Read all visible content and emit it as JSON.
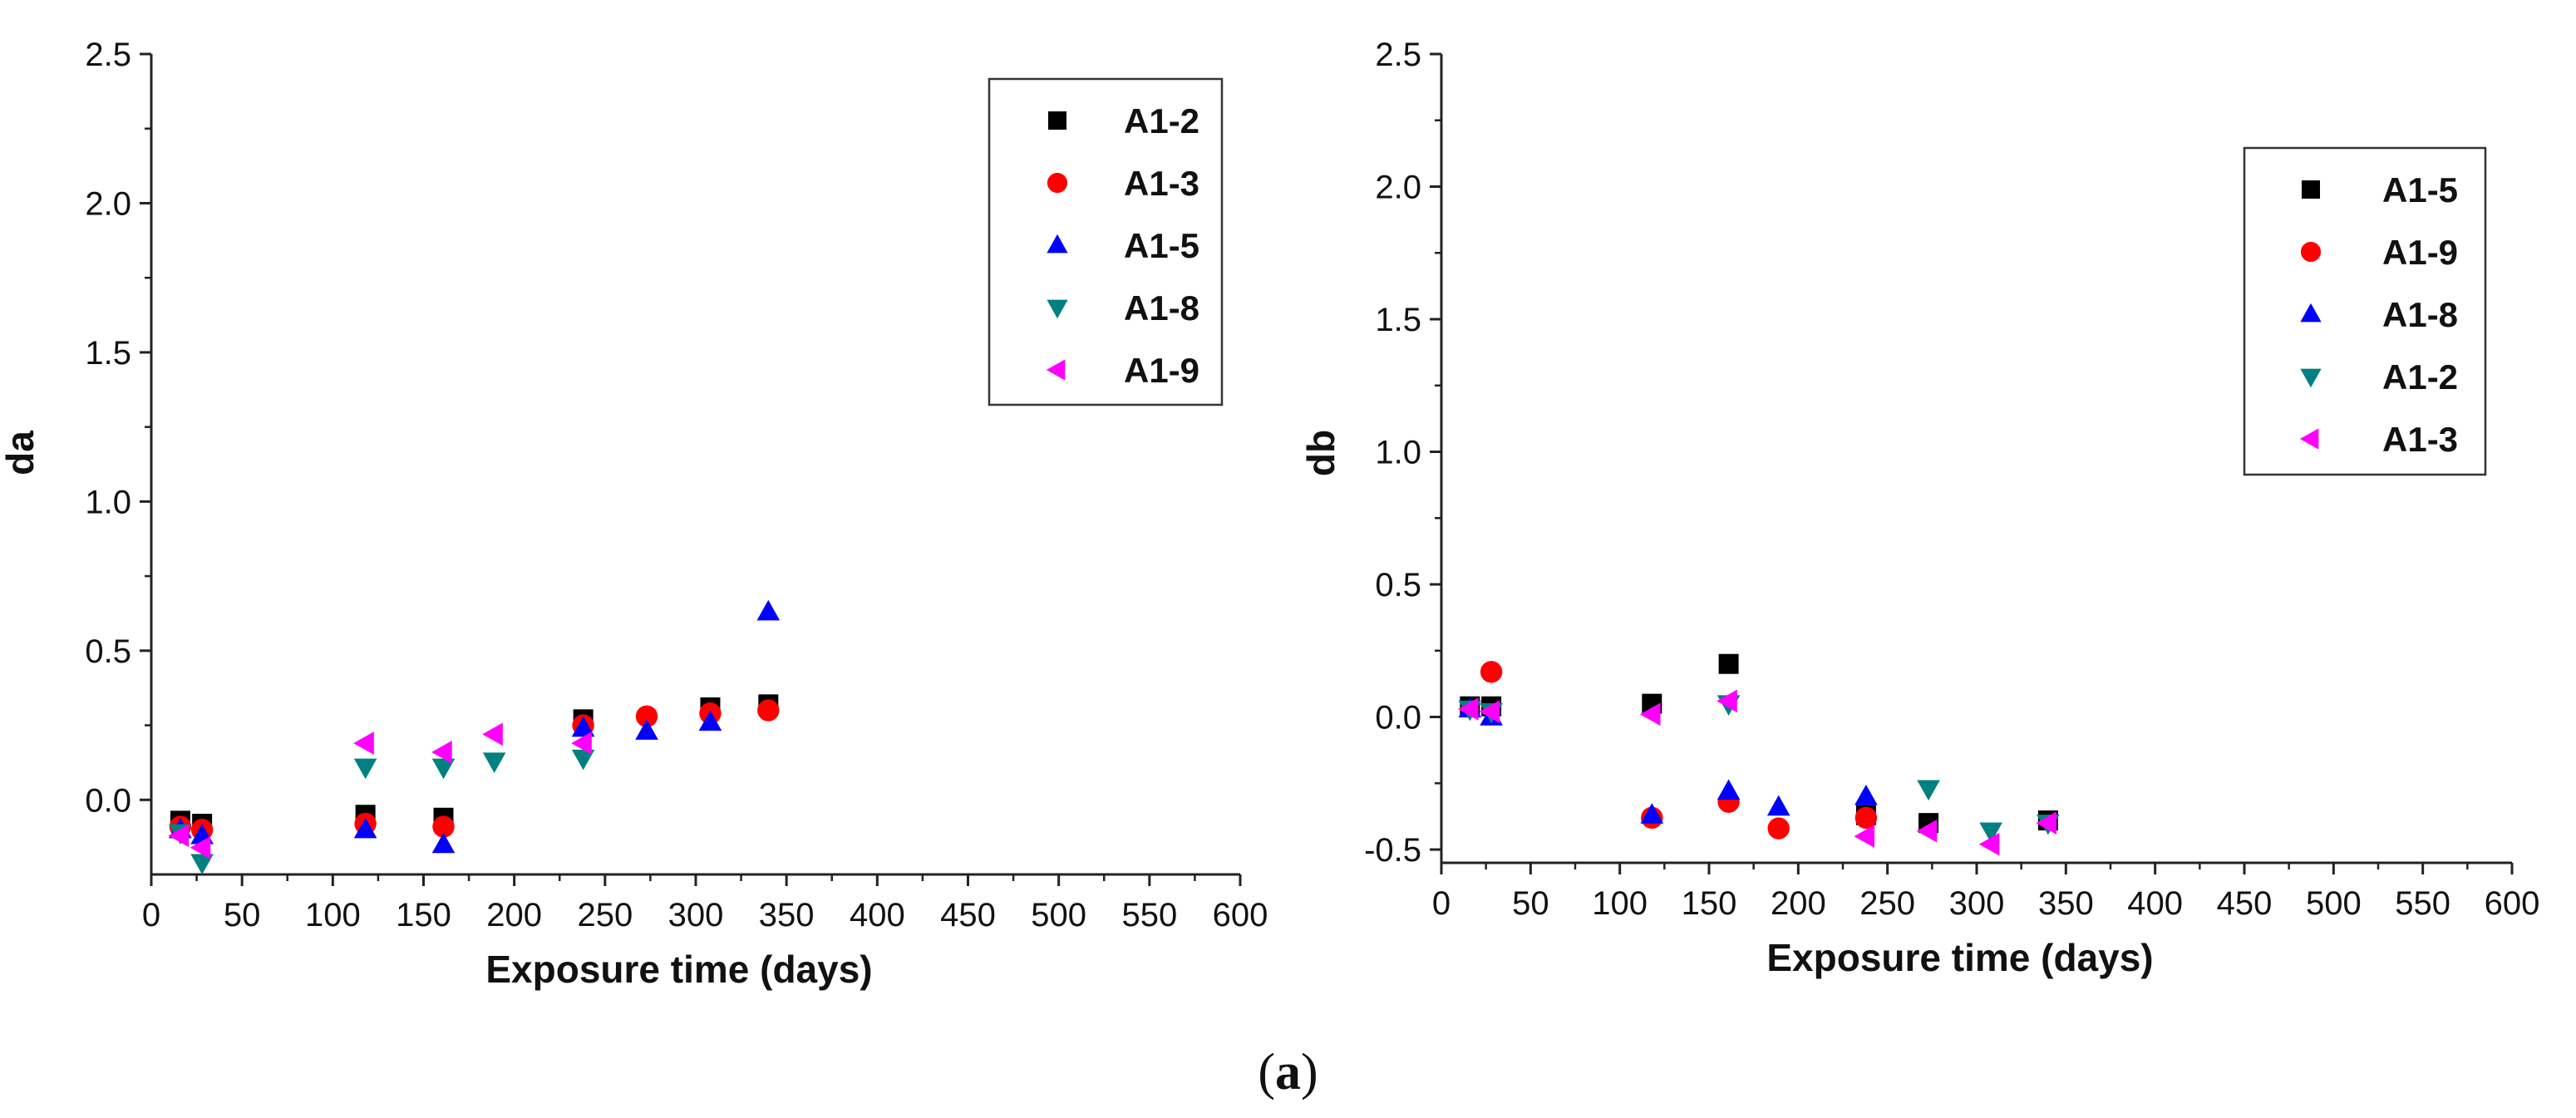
{
  "figure": {
    "label_open": "(",
    "label": "a",
    "label_close": ")"
  },
  "chart_data": [
    {
      "type": "scatter",
      "title": "",
      "xlabel": "Exposure time (days)",
      "ylabel": "da",
      "xlim": [
        0,
        600
      ],
      "ylim": [
        -0.25,
        2.5
      ],
      "xticks": [
        0,
        50,
        100,
        150,
        200,
        250,
        300,
        350,
        400,
        450,
        500,
        550,
        600
      ],
      "yticks": [
        0.0,
        0.5,
        1.0,
        1.5,
        2.0,
        2.5
      ],
      "yticklabels": [
        "0.0",
        "0.5",
        "1.0",
        "1.5",
        "2.0",
        "2.5"
      ],
      "legend_position": "top-right",
      "series": [
        {
          "name": "A1-2",
          "marker": "square",
          "color": "#000000",
          "points": [
            [
              16,
              -0.07
            ],
            [
              28,
              -0.08
            ],
            [
              118,
              -0.05
            ],
            [
              161,
              -0.06
            ],
            [
              238,
              0.27
            ],
            [
              308,
              0.31
            ],
            [
              340,
              0.32
            ]
          ]
        },
        {
          "name": "A1-3",
          "marker": "circle",
          "color": "#ff0000",
          "points": [
            [
              16,
              -0.09
            ],
            [
              28,
              -0.1
            ],
            [
              118,
              -0.08
            ],
            [
              161,
              -0.09
            ],
            [
              238,
              0.25
            ],
            [
              273,
              0.28
            ],
            [
              308,
              0.29
            ],
            [
              340,
              0.3
            ]
          ]
        },
        {
          "name": "A1-5",
          "marker": "triangle-up",
          "color": "#0000ff",
          "points": [
            [
              16,
              -0.1
            ],
            [
              28,
              -0.12
            ],
            [
              118,
              -0.1
            ],
            [
              161,
              -0.15
            ],
            [
              238,
              0.24
            ],
            [
              273,
              0.23
            ],
            [
              308,
              0.26
            ],
            [
              340,
              0.63
            ]
          ]
        },
        {
          "name": "A1-8",
          "marker": "triangle-down",
          "color": "#008080",
          "points": [
            [
              16,
              -0.11
            ],
            [
              28,
              -0.21
            ],
            [
              118,
              0.11
            ],
            [
              161,
              0.11
            ],
            [
              189,
              0.13
            ],
            [
              238,
              0.14
            ]
          ]
        },
        {
          "name": "A1-9",
          "marker": "triangle-left",
          "color": "#ff00ff",
          "points": [
            [
              16,
              -0.12
            ],
            [
              28,
              -0.16
            ],
            [
              118,
              0.19
            ],
            [
              161,
              0.16
            ],
            [
              189,
              0.22
            ],
            [
              238,
              0.19
            ]
          ]
        }
      ]
    },
    {
      "type": "scatter",
      "title": "",
      "xlabel": "Exposure time (days)",
      "ylabel": "db",
      "xlim": [
        0,
        600
      ],
      "ylim": [
        -0.55,
        2.5
      ],
      "xticks": [
        0,
        50,
        100,
        150,
        200,
        250,
        300,
        350,
        400,
        450,
        500,
        550,
        600
      ],
      "yticks": [
        -0.5,
        0.0,
        0.5,
        1.0,
        1.5,
        2.0,
        2.5
      ],
      "yticklabels": [
        "-0.5",
        "0.0",
        "0.5",
        "1.0",
        "1.5",
        "2.0",
        "2.5"
      ],
      "legend_position": "top-right",
      "series": [
        {
          "name": "A1-5",
          "marker": "square",
          "color": "#000000",
          "points": [
            [
              16,
              0.04
            ],
            [
              28,
              0.04
            ],
            [
              118,
              0.05
            ],
            [
              161,
              0.2
            ],
            [
              238,
              -0.37
            ],
            [
              273,
              -0.4
            ],
            [
              340,
              -0.39
            ]
          ]
        },
        {
          "name": "A1-9",
          "marker": "circle",
          "color": "#ff0000",
          "points": [
            [
              28,
              0.17
            ],
            [
              118,
              -0.38
            ],
            [
              161,
              -0.32
            ],
            [
              189,
              -0.42
            ],
            [
              238,
              -0.38
            ]
          ]
        },
        {
          "name": "A1-8",
          "marker": "triangle-up",
          "color": "#0000ff",
          "points": [
            [
              16,
              0.03
            ],
            [
              28,
              0.0
            ],
            [
              118,
              -0.37
            ],
            [
              161,
              -0.28
            ],
            [
              189,
              -0.34
            ],
            [
              238,
              -0.3
            ]
          ]
        },
        {
          "name": "A1-2",
          "marker": "triangle-down",
          "color": "#008080",
          "points": [
            [
              16,
              0.03
            ],
            [
              28,
              0.02
            ],
            [
              161,
              0.05
            ],
            [
              273,
              -0.27
            ],
            [
              308,
              -0.43
            ],
            [
              340,
              -0.4
            ]
          ]
        },
        {
          "name": "A1-3",
          "marker": "triangle-left",
          "color": "#ff00ff",
          "points": [
            [
              16,
              0.03
            ],
            [
              28,
              0.02
            ],
            [
              118,
              0.01
            ],
            [
              161,
              0.06
            ],
            [
              238,
              -0.45
            ],
            [
              273,
              -0.43
            ],
            [
              308,
              -0.48
            ],
            [
              340,
              -0.4
            ]
          ]
        }
      ]
    }
  ]
}
